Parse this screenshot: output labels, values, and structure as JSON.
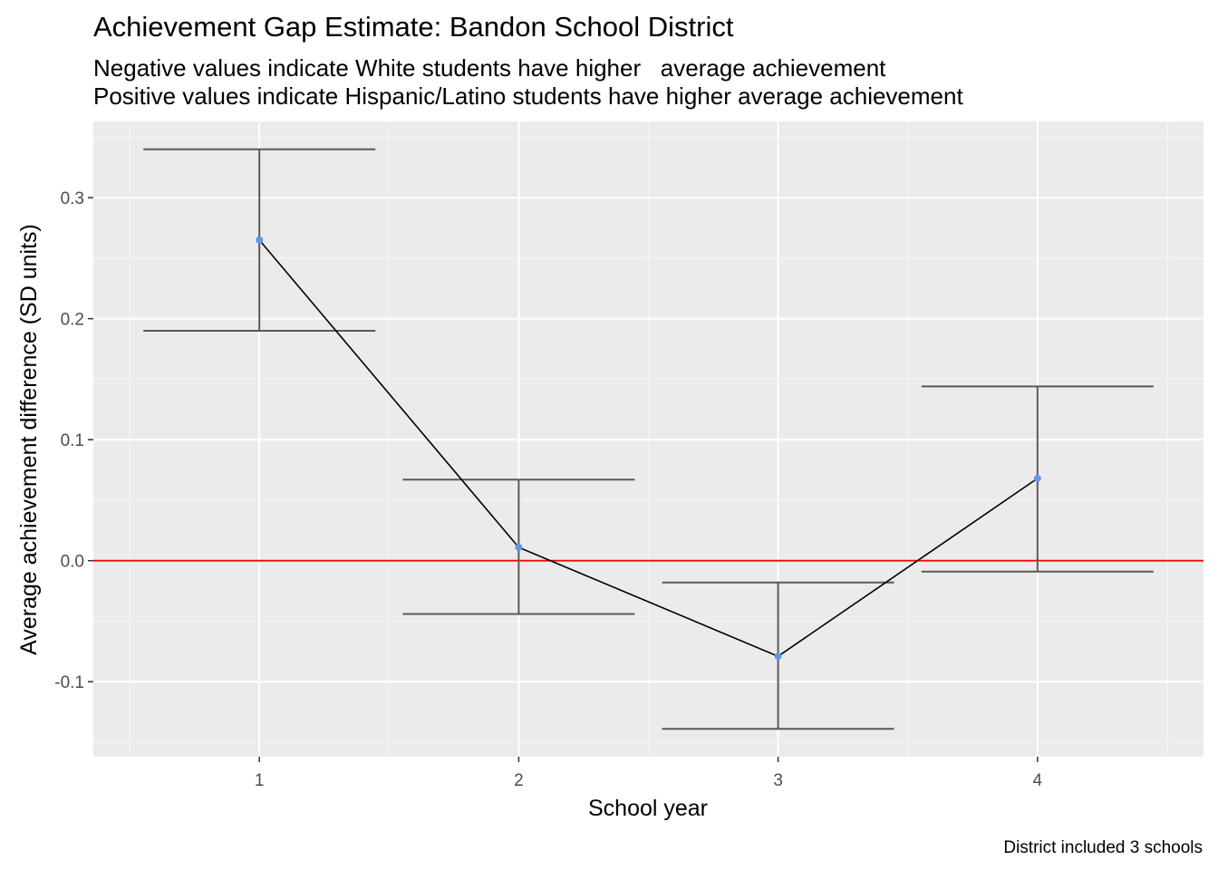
{
  "colors": {
    "panel_background": "#ebebeb",
    "grid_major": "#ffffff",
    "grid_minor": "#f4f4f4",
    "reference_line": "#ff0000",
    "errorbar": "#595959",
    "line": "#000000",
    "point": "#6495ed",
    "tick_text": "#4d4d4d"
  },
  "chart_data": {
    "type": "line",
    "title": "Achievement Gap Estimate: Bandon School District",
    "subtitle_lines": [
      "Negative values indicate White students have higher   average achievement",
      "Positive values indicate Hispanic/Latino students have higher average achievement"
    ],
    "xlabel": "School year",
    "ylabel": "Average achievement difference (SD units)",
    "caption": "District included 3 schools",
    "x": [
      1,
      2,
      3,
      4
    ],
    "x_tick_labels": [
      "1",
      "2",
      "3",
      "4"
    ],
    "xlim": [
      0.36,
      4.64
    ],
    "y": [
      0.265,
      0.011,
      -0.079,
      0.068
    ],
    "ci_lower": [
      0.19,
      -0.044,
      -0.139,
      -0.009
    ],
    "ci_upper": [
      0.34,
      0.067,
      -0.018,
      0.144
    ],
    "y_ticks": [
      -0.1,
      0.0,
      0.1,
      0.2,
      0.3
    ],
    "y_tick_labels": [
      "-0.1",
      "0.0",
      "0.1",
      "0.2",
      "0.3"
    ],
    "ylim": [
      -0.162,
      0.363
    ],
    "reference_line_y": 0.0,
    "grid": true,
    "legend": "none"
  }
}
